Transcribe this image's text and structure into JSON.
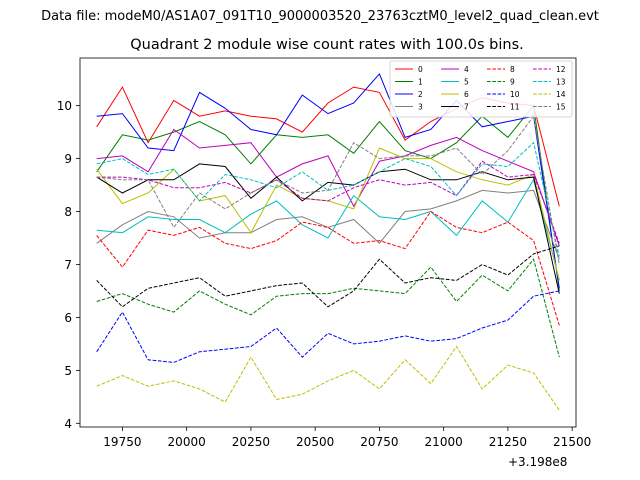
{
  "figure": {
    "suptitle": "Data file: modeM0/AS1A07_091T10_9000003520_23763cztM0_level2_quad_clean.evt",
    "offset_label": "+3.198e8"
  },
  "chart_data": {
    "type": "line",
    "title": "Quadrant 2 module wise count rates with 100.0s bins.",
    "xlabel": "",
    "ylabel": "",
    "x_offset": 319800000,
    "x": [
      19650,
      19750,
      19850,
      19950,
      20050,
      20150,
      20250,
      20350,
      20450,
      20550,
      20650,
      20750,
      20850,
      20950,
      21050,
      21150,
      21250,
      21350,
      21450
    ],
    "xlim": [
      19585,
      21515
    ],
    "ylim": [
      3.93,
      10.9
    ],
    "xticks": [
      19750,
      20000,
      20250,
      20500,
      20750,
      21000,
      21250,
      21500
    ],
    "xtick_labels": [
      "19750",
      "20000",
      "20250",
      "20500",
      "20750",
      "21000",
      "21250",
      "21500"
    ],
    "yticks": [
      4,
      5,
      6,
      7,
      8,
      9,
      10
    ],
    "ytick_labels": [
      "4",
      "5",
      "6",
      "7",
      "8",
      "9",
      "10"
    ],
    "grid": false,
    "legend": {
      "placement": "top-right",
      "columns": 4
    },
    "series": [
      {
        "name": "0",
        "color": "#ff0000",
        "style": "solid",
        "values": [
          9.6,
          10.35,
          9.3,
          10.1,
          9.8,
          9.9,
          9.8,
          9.75,
          9.5,
          10.05,
          10.35,
          10.25,
          9.35,
          9.7,
          9.95,
          10.15,
          10.05,
          10.0,
          8.1
        ]
      },
      {
        "name": "1",
        "color": "#008000",
        "style": "solid",
        "values": [
          8.75,
          9.45,
          9.35,
          9.5,
          9.7,
          9.45,
          8.9,
          9.45,
          9.4,
          9.45,
          9.1,
          9.7,
          9.15,
          9.0,
          9.3,
          9.8,
          9.4,
          10.0,
          6.5
        ]
      },
      {
        "name": "2",
        "color": "#0000ff",
        "style": "solid",
        "values": [
          9.8,
          9.85,
          9.2,
          9.15,
          10.25,
          9.95,
          9.55,
          9.45,
          10.2,
          9.85,
          10.05,
          10.6,
          9.4,
          9.55,
          10.1,
          9.6,
          9.7,
          9.8,
          6.55
        ]
      },
      {
        "name": "3",
        "color": "#808080",
        "style": "solid",
        "values": [
          7.4,
          7.75,
          8.0,
          7.9,
          7.5,
          7.6,
          7.6,
          7.85,
          7.9,
          7.7,
          7.85,
          7.4,
          8.0,
          8.05,
          8.2,
          8.4,
          8.35,
          8.4,
          7.1
        ]
      },
      {
        "name": "4",
        "color": "#bf00bf",
        "style": "solid",
        "values": [
          9.0,
          9.05,
          8.75,
          9.55,
          9.2,
          9.25,
          9.3,
          8.65,
          8.9,
          9.05,
          8.1,
          8.95,
          9.05,
          9.25,
          9.4,
          9.15,
          8.95,
          8.75,
          7.35
        ]
      },
      {
        "name": "5",
        "color": "#00bfbf",
        "style": "solid",
        "values": [
          7.65,
          7.6,
          7.9,
          7.85,
          7.85,
          7.6,
          7.95,
          8.2,
          7.75,
          7.5,
          8.3,
          7.9,
          7.85,
          8.0,
          7.55,
          8.2,
          7.8,
          8.6,
          6.7
        ]
      },
      {
        "name": "6",
        "color": "#bfbf00",
        "style": "solid",
        "values": [
          8.8,
          8.15,
          8.35,
          8.8,
          8.2,
          8.3,
          7.6,
          8.5,
          8.25,
          8.2,
          8.05,
          9.2,
          9.0,
          9.0,
          8.75,
          8.6,
          8.5,
          8.7,
          6.7
        ]
      },
      {
        "name": "7",
        "color": "#000000",
        "style": "solid",
        "values": [
          8.65,
          8.35,
          8.6,
          8.6,
          8.9,
          8.85,
          8.25,
          8.65,
          8.2,
          8.55,
          8.5,
          8.75,
          8.8,
          8.6,
          8.6,
          8.75,
          8.6,
          8.65,
          6.45
        ]
      },
      {
        "name": "8",
        "color": "#ff0000",
        "style": "dashed",
        "values": [
          7.55,
          6.95,
          7.65,
          7.55,
          7.7,
          7.4,
          7.3,
          7.45,
          7.8,
          7.7,
          7.4,
          7.45,
          7.3,
          8.0,
          7.7,
          7.6,
          7.8,
          7.45,
          5.85
        ]
      },
      {
        "name": "9",
        "color": "#008000",
        "style": "dashed",
        "values": [
          6.3,
          6.45,
          6.25,
          6.1,
          6.5,
          6.25,
          6.05,
          6.4,
          6.45,
          6.45,
          6.55,
          6.5,
          6.45,
          6.95,
          6.3,
          6.8,
          6.5,
          7.1,
          5.25
        ]
      },
      {
        "name": "10",
        "color": "#0000ff",
        "style": "dashed",
        "values": [
          5.35,
          6.1,
          5.2,
          5.15,
          5.35,
          5.4,
          5.45,
          5.8,
          5.25,
          5.7,
          5.5,
          5.55,
          5.65,
          5.55,
          5.6,
          5.8,
          5.95,
          6.4,
          6.5
        ]
      },
      {
        "name": "11",
        "color": "#000000",
        "style": "dashed",
        "values": [
          6.7,
          6.2,
          6.55,
          6.65,
          6.75,
          6.4,
          6.5,
          6.6,
          6.65,
          6.2,
          6.5,
          7.1,
          6.65,
          6.75,
          6.7,
          7.0,
          6.8,
          7.2,
          7.35
        ]
      },
      {
        "name": "12",
        "color": "#bf00bf",
        "style": "dashed",
        "values": [
          8.65,
          8.65,
          8.6,
          8.45,
          8.45,
          8.55,
          8.35,
          8.6,
          8.25,
          8.2,
          8.45,
          8.6,
          8.5,
          8.55,
          8.3,
          8.95,
          8.65,
          8.7,
          7.4
        ]
      },
      {
        "name": "13",
        "color": "#00bfbf",
        "style": "dashed",
        "values": [
          8.9,
          9.0,
          8.7,
          8.8,
          8.2,
          8.7,
          8.6,
          8.45,
          8.75,
          8.4,
          8.5,
          8.75,
          9.0,
          8.85,
          8.3,
          8.9,
          8.85,
          9.3,
          7.15
        ]
      },
      {
        "name": "14",
        "color": "#bfbf00",
        "style": "dashed",
        "values": [
          4.7,
          4.9,
          4.7,
          4.8,
          4.65,
          4.4,
          5.25,
          4.45,
          4.55,
          4.8,
          5.0,
          4.65,
          5.2,
          4.75,
          5.45,
          4.65,
          5.1,
          4.95,
          4.25
        ]
      },
      {
        "name": "15",
        "color": "#808080",
        "style": "dashed",
        "values": [
          8.65,
          8.6,
          8.6,
          7.7,
          8.35,
          8.05,
          8.35,
          8.6,
          8.35,
          8.4,
          9.3,
          9.0,
          9.05,
          9.05,
          9.2,
          8.7,
          9.15,
          9.8,
          7.0
        ]
      }
    ]
  }
}
